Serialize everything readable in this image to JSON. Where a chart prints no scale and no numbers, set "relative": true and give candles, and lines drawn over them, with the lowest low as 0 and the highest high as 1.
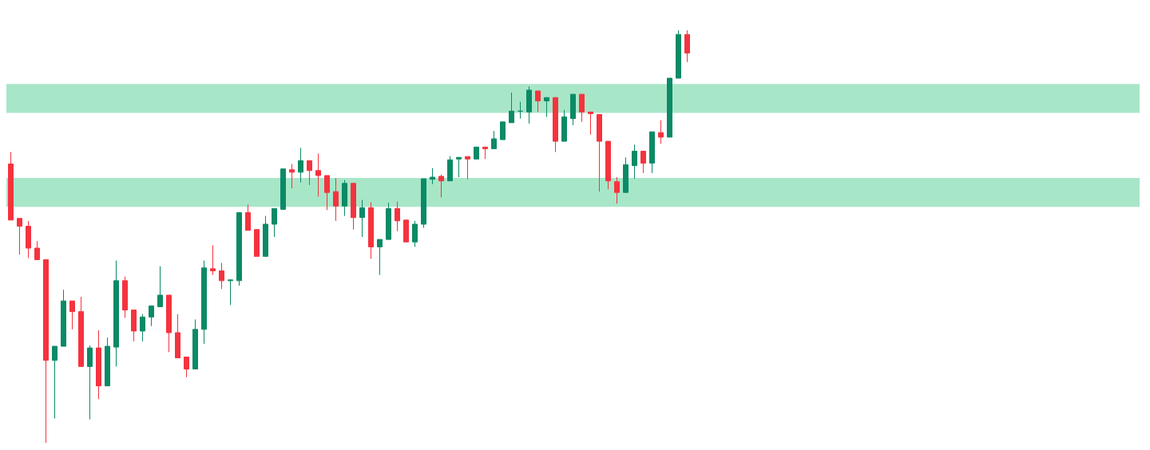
{
  "chart_data": {
    "type": "candlestick",
    "relative": true,
    "tick_labels": false,
    "categories": [
      null,
      null,
      null,
      null,
      null,
      null,
      null,
      null,
      null,
      null,
      null,
      null,
      null,
      null,
      null,
      null,
      null,
      null,
      null,
      null,
      null,
      null,
      null,
      null,
      null,
      null,
      null,
      null,
      null,
      null,
      null,
      null,
      null,
      null,
      null,
      null,
      null,
      null,
      null,
      null,
      null,
      null,
      null,
      null,
      null,
      null,
      null,
      null,
      null,
      null,
      null,
      null,
      null,
      null,
      null,
      null,
      null,
      null,
      null,
      null,
      null,
      null,
      null,
      null,
      null,
      null,
      null,
      null,
      null,
      null,
      null,
      null,
      null,
      null,
      null,
      null,
      null,
      null
    ],
    "ohlc": [
      [
        0.676,
        0.705,
        0.54,
        0.54
      ],
      [
        0.544,
        0.544,
        0.456,
        0.525
      ],
      [
        0.525,
        0.538,
        0.448,
        0.472
      ],
      [
        0.472,
        0.489,
        0.444,
        0.444
      ],
      [
        0.444,
        0.444,
        0,
        0.2
      ],
      [
        0.2,
        0.234,
        0.059,
        0.234
      ],
      [
        0.234,
        0.371,
        0.234,
        0.344
      ],
      [
        0.344,
        0.344,
        0.275,
        0.318
      ],
      [
        0.318,
        0.354,
        0.185,
        0.185
      ],
      [
        0.185,
        0.236,
        0.057,
        0.23
      ],
      [
        0.23,
        0.273,
        0.106,
        0.138
      ],
      [
        0.138,
        0.255,
        0.138,
        0.234
      ],
      [
        0.232,
        0.442,
        0.185,
        0.393
      ],
      [
        0.393,
        0.403,
        0.303,
        0.322
      ],
      [
        0.322,
        0.322,
        0.246,
        0.271
      ],
      [
        0.271,
        0.312,
        0.246,
        0.305
      ],
      [
        0.305,
        0.332,
        0.283,
        0.332
      ],
      [
        0.33,
        0.428,
        0.33,
        0.358
      ],
      [
        0.358,
        0.358,
        0.22,
        0.267
      ],
      [
        0.267,
        0.312,
        0.206,
        0.206
      ],
      [
        0.208,
        0.208,
        0.159,
        0.179
      ],
      [
        0.179,
        0.299,
        0.179,
        0.275
      ],
      [
        0.275,
        0.442,
        0.24,
        0.424
      ],
      [
        0.422,
        0.479,
        0.407,
        0.417
      ],
      [
        0.417,
        0.436,
        0.373,
        0.393
      ],
      [
        0.393,
        0.395,
        0.334,
        0.395
      ],
      [
        0.393,
        0.558,
        0.381,
        0.558
      ],
      [
        0.558,
        0.578,
        0.515,
        0.515
      ],
      [
        0.517,
        0.517,
        0.452,
        0.452
      ],
      [
        0.452,
        0.55,
        0.452,
        0.53
      ],
      [
        0.53,
        0.568,
        0.499,
        0.568
      ],
      [
        0.566,
        0.664,
        0.566,
        0.664
      ],
      [
        0.662,
        0.676,
        0.617,
        0.656
      ],
      [
        0.656,
        0.715,
        0.631,
        0.684
      ],
      [
        0.684,
        0.684,
        0.625,
        0.66
      ],
      [
        0.66,
        0.701,
        0.597,
        0.648
      ],
      [
        0.648,
        0.648,
        0.564,
        0.607
      ],
      [
        0.609,
        0.642,
        0.538,
        0.574
      ],
      [
        0.574,
        0.637,
        0.55,
        0.629
      ],
      [
        0.629,
        0.629,
        0.517,
        0.546
      ],
      [
        0.546,
        0.589,
        0.499,
        0.57
      ],
      [
        0.57,
        0.583,
        0.446,
        0.475
      ],
      [
        0.475,
        0.493,
        0.407,
        0.493
      ],
      [
        0.493,
        0.582,
        0.493,
        0.568
      ],
      [
        0.568,
        0.585,
        0.513,
        0.538
      ],
      [
        0.54,
        0.54,
        0.487,
        0.487
      ],
      [
        0.487,
        0.538,
        0.475,
        0.53
      ],
      [
        0.53,
        0.64,
        0.521,
        0.64
      ],
      [
        0.639,
        0.666,
        0.627,
        0.644
      ],
      [
        0.646,
        0.65,
        0.595,
        0.635
      ],
      [
        0.635,
        0.695,
        0.635,
        0.686
      ],
      [
        0.688,
        0.692,
        0.644,
        0.692
      ],
      [
        0.694,
        0.694,
        0.639,
        0.688
      ],
      [
        0.688,
        0.717,
        0.688,
        0.717
      ],
      [
        0.717,
        0.717,
        0.688,
        0.713
      ],
      [
        0.713,
        0.756,
        0.713,
        0.737
      ],
      [
        0.735,
        0.778,
        0.735,
        0.778
      ],
      [
        0.776,
        0.849,
        0.776,
        0.804
      ],
      [
        0.804,
        0.827,
        0.786,
        0.804
      ],
      [
        0.802,
        0.864,
        0.774,
        0.855
      ],
      [
        0.853,
        0.853,
        0.802,
        0.829
      ],
      [
        0.829,
        0.837,
        0.79,
        0.837
      ],
      [
        0.837,
        0.837,
        0.705,
        0.731
      ],
      [
        0.731,
        0.807,
        0.731,
        0.79
      ],
      [
        0.786,
        0.845,
        0.77,
        0.845
      ],
      [
        0.845,
        0.845,
        0.778,
        0.802
      ],
      [
        0.802,
        0.802,
        0.747,
        0.798
      ],
      [
        0.796,
        0.796,
        0.609,
        0.731
      ],
      [
        0.731,
        0.731,
        0.615,
        0.635
      ],
      [
        0.633,
        0.644,
        0.58,
        0.607
      ],
      [
        0.607,
        0.692,
        0.607,
        0.674
      ],
      [
        0.672,
        0.723,
        0.64,
        0.707
      ],
      [
        0.707,
        0.707,
        0.654,
        0.678
      ],
      [
        0.678,
        0.754,
        0.654,
        0.754
      ],
      [
        0.752,
        0.782,
        0.725,
        0.741
      ],
      [
        0.741,
        0.884,
        0.741,
        0.884
      ],
      [
        0.884,
        1.0,
        0.884,
        0.99
      ],
      [
        0.99,
        1.0,
        0.923,
        0.945
      ]
    ],
    "bands": [
      {
        "axis": "y",
        "from": 0.8,
        "to": 0.87,
        "color": "#a8e6c8"
      },
      {
        "axis": "y",
        "from": 0.572,
        "to": 0.642,
        "color": "#a8e6c8"
      }
    ]
  }
}
